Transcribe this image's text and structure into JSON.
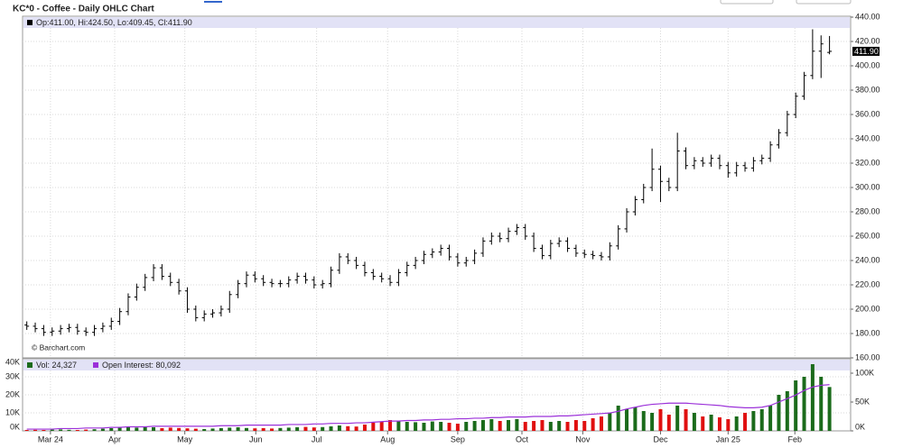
{
  "chart_data": [
    {
      "type": "ohlc",
      "title": "KC*0 - Coffee - Daily OHLC Chart",
      "ohlc_label": "Op:411.00, Hi:424.50, Lo:409.45, Cl:411.90",
      "watermark": "© Barchart.com",
      "last_price_label": "411.90",
      "color": "#000000",
      "xlim": [
        -0.5,
        97.5
      ],
      "xticks": [
        {
          "value": 2.8,
          "label": "Mar 24"
        },
        {
          "value": 10.4,
          "label": "Apr"
        },
        {
          "value": 18.7,
          "label": "May"
        },
        {
          "value": 27.1,
          "label": "Jun"
        },
        {
          "value": 34.3,
          "label": "Jul"
        },
        {
          "value": 42.7,
          "label": "Aug"
        },
        {
          "value": 51.0,
          "label": "Sep"
        },
        {
          "value": 58.6,
          "label": "Oct"
        },
        {
          "value": 65.8,
          "label": "Nov"
        },
        {
          "value": 75.0,
          "label": "Dec"
        },
        {
          "value": 83.0,
          "label": "Jan 25"
        },
        {
          "value": 90.9,
          "label": "Feb"
        }
      ],
      "ylim": [
        160,
        440
      ],
      "yticks": [
        {
          "value": 160,
          "label": "160.00"
        },
        {
          "value": 180,
          "label": "180.00"
        },
        {
          "value": 200,
          "label": "200.00"
        },
        {
          "value": 220,
          "label": "220.00"
        },
        {
          "value": 240,
          "label": "240.00"
        },
        {
          "value": 260,
          "label": "260.00"
        },
        {
          "value": 280,
          "label": "280.00"
        },
        {
          "value": 300,
          "label": "300.00"
        },
        {
          "value": 320,
          "label": "320.00"
        },
        {
          "value": 340,
          "label": "340.00"
        },
        {
          "value": 360,
          "label": "360.00"
        },
        {
          "value": 380,
          "label": "380.00"
        },
        {
          "value": 400,
          "label": "400.00"
        },
        {
          "value": 420,
          "label": "420.00"
        },
        {
          "value": 440,
          "label": "440.00"
        }
      ],
      "grid": true,
      "open": [
        187,
        186,
        184,
        181,
        182,
        184,
        185,
        182,
        181,
        184,
        186,
        190,
        198,
        210,
        218,
        226,
        234,
        227,
        222,
        215,
        200,
        193,
        196,
        197,
        200,
        212,
        221,
        228,
        225,
        222,
        221,
        221,
        224,
        227,
        224,
        220,
        221,
        232,
        243,
        240,
        236,
        230,
        227,
        225,
        222,
        230,
        236,
        240,
        245,
        247,
        250,
        243,
        238,
        240,
        246,
        256,
        260,
        258,
        264,
        267,
        260,
        250,
        244,
        254,
        256,
        250,
        246,
        245,
        244,
        243,
        252,
        266,
        280,
        290,
        300,
        315,
        305,
        300,
        330,
        318,
        322,
        320,
        324,
        318,
        312,
        318,
        316,
        322,
        324,
        335,
        345,
        360,
        375,
        392,
        412,
        411
      ],
      "high": [
        190,
        189,
        187,
        185,
        187,
        188,
        188,
        185,
        187,
        189,
        193,
        201,
        213,
        221,
        229,
        237,
        237,
        230,
        225,
        218,
        203,
        199,
        200,
        203,
        215,
        224,
        231,
        231,
        228,
        225,
        224,
        227,
        230,
        230,
        227,
        224,
        235,
        246,
        246,
        243,
        239,
        233,
        230,
        228,
        233,
        239,
        243,
        248,
        250,
        253,
        253,
        246,
        243,
        249,
        259,
        263,
        263,
        267,
        270,
        270,
        263,
        253,
        257,
        259,
        259,
        253,
        249,
        248,
        247,
        255,
        269,
        283,
        293,
        303,
        332,
        318,
        308,
        345,
        333,
        325,
        325,
        327,
        327,
        321,
        321,
        321,
        325,
        327,
        338,
        348,
        363,
        378,
        395,
        430,
        425,
        424.5
      ],
      "low": [
        183,
        181,
        178,
        178,
        179,
        181,
        179,
        178,
        178,
        181,
        183,
        187,
        195,
        207,
        215,
        223,
        224,
        219,
        212,
        197,
        190,
        190,
        193,
        194,
        197,
        209,
        218,
        222,
        219,
        218,
        218,
        218,
        221,
        221,
        217,
        217,
        218,
        229,
        237,
        233,
        227,
        224,
        222,
        219,
        219,
        227,
        233,
        237,
        242,
        244,
        240,
        235,
        235,
        237,
        243,
        253,
        255,
        255,
        261,
        257,
        247,
        241,
        241,
        251,
        247,
        243,
        242,
        241,
        240,
        240,
        249,
        263,
        277,
        287,
        297,
        288,
        297,
        297,
        315,
        315,
        317,
        317,
        315,
        308,
        309,
        313,
        313,
        319,
        321,
        332,
        342,
        357,
        372,
        389,
        390,
        409.45
      ],
      "close": [
        186,
        184,
        181,
        182,
        184,
        185,
        182,
        181,
        184,
        186,
        190,
        198,
        210,
        218,
        226,
        234,
        227,
        222,
        215,
        200,
        193,
        196,
        197,
        200,
        212,
        221,
        228,
        225,
        222,
        221,
        221,
        224,
        227,
        224,
        220,
        221,
        232,
        243,
        240,
        236,
        230,
        227,
        225,
        222,
        230,
        236,
        240,
        245,
        247,
        250,
        243,
        238,
        240,
        246,
        256,
        260,
        258,
        264,
        267,
        260,
        250,
        244,
        254,
        256,
        250,
        246,
        245,
        244,
        243,
        252,
        266,
        280,
        290,
        300,
        315,
        305,
        300,
        330,
        318,
        322,
        320,
        324,
        318,
        312,
        318,
        316,
        322,
        324,
        335,
        345,
        360,
        375,
        392,
        412,
        418,
        411.9
      ]
    },
    {
      "type": "bar",
      "up_color": "#1b6b1b",
      "down_color": "#e01010",
      "ylim": [
        0,
        40
      ],
      "yticks": [
        {
          "value": 0,
          "label": "0K"
        },
        {
          "value": 10,
          "label": "10K"
        },
        {
          "value": 20,
          "label": "20K"
        },
        {
          "value": 30,
          "label": "30K"
        },
        {
          "value": 40,
          "label": "40K"
        }
      ],
      "y2lim": [
        0,
        125
      ],
      "y2ticks": [
        {
          "value": 0,
          "label": "0K"
        },
        {
          "value": 50,
          "label": "50K"
        },
        {
          "value": 100,
          "label": "100K"
        }
      ],
      "series": [
        {
          "name": "Vol: 24,327",
          "color": "#1b6b1b",
          "values": [
            0.5,
            0.6,
            0.5,
            0.7,
            0.8,
            0.6,
            0.5,
            0.7,
            0.9,
            1.2,
            1.5,
            2.0,
            2.5,
            1.8,
            2.2,
            2.0,
            1.5,
            1.8,
            1.6,
            1.4,
            1.2,
            1.0,
            1.3,
            1.5,
            1.8,
            2.0,
            1.6,
            1.4,
            1.5,
            1.3,
            1.6,
            1.8,
            2.0,
            2.2,
            1.9,
            2.1,
            2.5,
            3.0,
            2.6,
            2.4,
            3.5,
            4.5,
            5.0,
            6.0,
            5.5,
            5.0,
            4.8,
            4.5,
            5.2,
            5.0,
            4.5,
            4.0,
            5.0,
            5.5,
            6.0,
            6.5,
            5.5,
            6.0,
            6.5,
            5.0,
            5.5,
            6.0,
            5.0,
            5.5,
            5.0,
            6.0,
            5.5,
            7.0,
            8.0,
            10.0,
            14.0,
            12.0,
            13.0,
            11.0,
            10.0,
            12.0,
            9.0,
            14.0,
            12.0,
            10.0,
            8.0,
            9.0,
            7.5,
            6.5,
            8.0,
            10.0,
            11.0,
            12.0,
            14.0,
            20.0,
            22.0,
            28.0,
            30.0,
            37.0,
            30.0,
            24.327
          ]
        },
        {
          "name": "Open Interest: 80,092",
          "color": "#9b30d9",
          "axis": "y2",
          "values": [
            3,
            3,
            3,
            3,
            4,
            4,
            4,
            5,
            5,
            5,
            6,
            6,
            7,
            7,
            7,
            8,
            8,
            8,
            8,
            8,
            8,
            8,
            8,
            9,
            9,
            9,
            10,
            10,
            10,
            10,
            10,
            11,
            11,
            11,
            12,
            12,
            13,
            13,
            13,
            14,
            14,
            15,
            16,
            17,
            17,
            18,
            18,
            19,
            19,
            20,
            20,
            21,
            21,
            22,
            22,
            23,
            23,
            24,
            24,
            24,
            25,
            25,
            25,
            26,
            26,
            27,
            28,
            29,
            30,
            31,
            34,
            38,
            41,
            44,
            46,
            47,
            48,
            48,
            48,
            47,
            46,
            45,
            44,
            42,
            41,
            40,
            40,
            41,
            44,
            50,
            56,
            62,
            70,
            76,
            79,
            80.092
          ]
        }
      ]
    }
  ]
}
